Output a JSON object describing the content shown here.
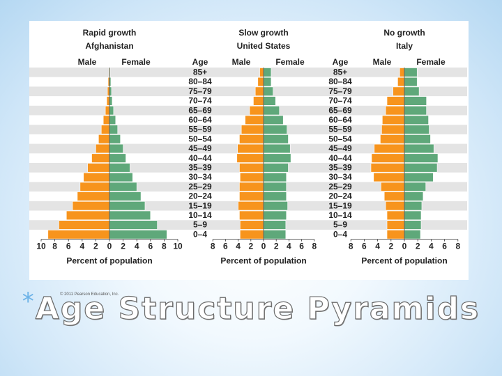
{
  "slide": {
    "title": "Age Structure Pyramids",
    "bullet_symbol": "*",
    "copyright": "© 2011 Pearson Education, Inc."
  },
  "colors": {
    "male": "#f7941d",
    "female": "#5fa87a",
    "band": "#e4e4e4",
    "frame": "#ffffff"
  },
  "chart_data": {
    "type": "bar",
    "age_groups": [
      "85+",
      "80–84",
      "75–79",
      "70–74",
      "65–69",
      "60–64",
      "55–59",
      "50–54",
      "45–49",
      "40–44",
      "35–39",
      "30–34",
      "25–29",
      "20–24",
      "15–19",
      "10–14",
      "5–9",
      "0–4"
    ],
    "age_label": "Age",
    "pyramids": [
      {
        "growth": "Rapid growth",
        "country": "Afghanistan",
        "male_label": "Male",
        "female_label": "Female",
        "xlabel": "Percent of population",
        "ticks": [
          "10",
          "8",
          "6",
          "4",
          "2",
          "0",
          "2",
          "4",
          "6",
          "8",
          "10"
        ],
        "xlim": 10,
        "male": [
          0.1,
          0.2,
          0.3,
          0.4,
          0.6,
          0.9,
          1.2,
          1.6,
          2.0,
          2.6,
          3.2,
          3.8,
          4.3,
          4.7,
          5.4,
          6.3,
          7.4,
          9.0
        ],
        "female": [
          0.1,
          0.2,
          0.3,
          0.4,
          0.6,
          0.9,
          1.2,
          1.6,
          2.0,
          2.4,
          3.0,
          3.4,
          4.0,
          4.6,
          5.2,
          6.0,
          7.0,
          8.4
        ]
      },
      {
        "growth": "Slow growth",
        "country": "United States",
        "male_label": "Male",
        "female_label": "Female",
        "xlabel": "Percent of population",
        "ticks": [
          "8",
          "6",
          "4",
          "2",
          "0",
          "2",
          "4",
          "6",
          "8"
        ],
        "xlim": 8,
        "male": [
          0.6,
          0.9,
          1.3,
          1.6,
          2.2,
          2.9,
          3.5,
          3.8,
          4.1,
          4.2,
          3.8,
          3.7,
          3.8,
          3.8,
          4.0,
          3.8,
          3.7,
          3.7
        ],
        "female": [
          1.2,
          1.2,
          1.5,
          1.9,
          2.5,
          3.1,
          3.7,
          3.9,
          4.2,
          4.3,
          3.9,
          3.6,
          3.6,
          3.6,
          3.8,
          3.6,
          3.5,
          3.5
        ]
      },
      {
        "growth": "No growth",
        "country": "Italy",
        "male_label": "Male",
        "female_label": "Female",
        "xlabel": "Percent of population",
        "ticks": [
          "8",
          "6",
          "4",
          "2",
          "0",
          "2",
          "4",
          "6",
          "8"
        ],
        "xlim": 8,
        "male": [
          0.7,
          1.0,
          1.7,
          2.6,
          2.8,
          3.3,
          3.4,
          3.6,
          4.5,
          4.9,
          5.0,
          4.6,
          3.5,
          3.0,
          2.8,
          2.6,
          2.6,
          2.6
        ],
        "female": [
          1.9,
          1.9,
          2.2,
          3.3,
          3.3,
          3.6,
          3.7,
          3.9,
          4.4,
          5.0,
          4.9,
          4.3,
          3.2,
          2.8,
          2.6,
          2.5,
          2.5,
          2.4
        ]
      }
    ]
  }
}
